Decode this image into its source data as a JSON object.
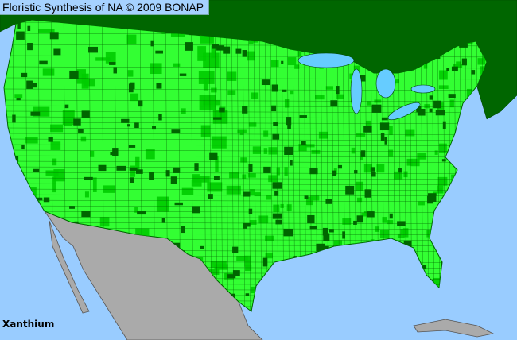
{
  "title": "Floristic Synthesis of NA © 2009 BONAP",
  "taxon": "Xanthium",
  "colors": {
    "water": "#99ccff",
    "present_state": "#00cc00",
    "present_county": "#33ff33",
    "no_record_region": "#006600",
    "outside_range": "#aaaaaa"
  }
}
